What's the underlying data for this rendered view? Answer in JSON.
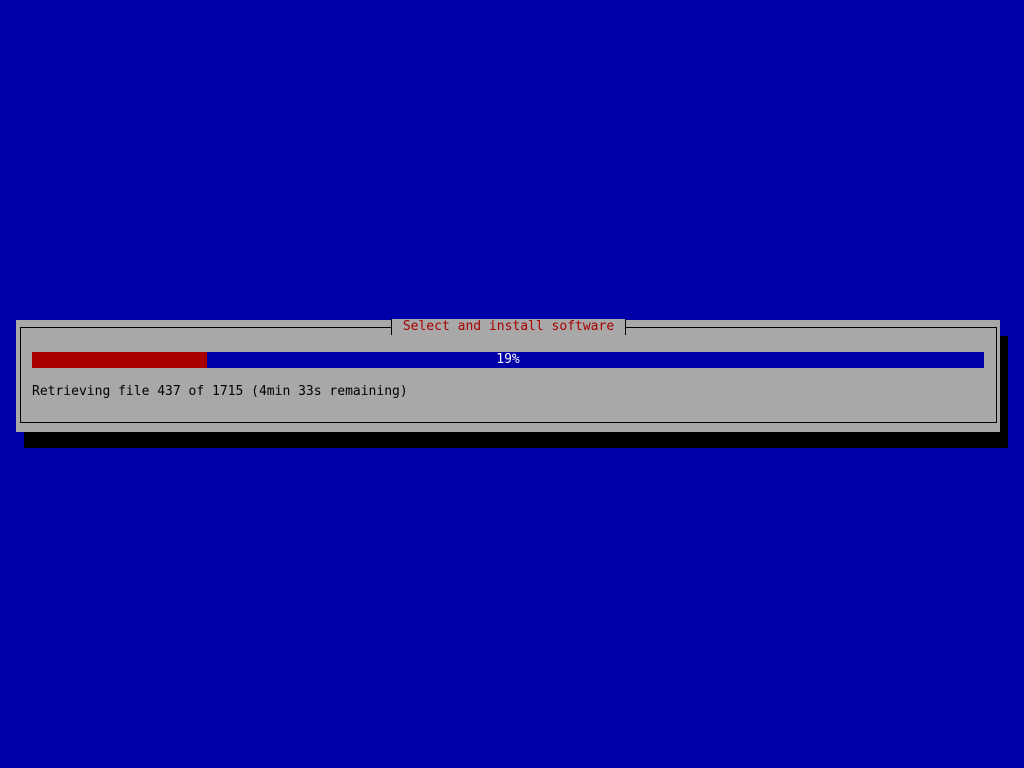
{
  "dialog": {
    "title": "Select and install software",
    "progress_label": "19%",
    "progress_percent": 19,
    "status": "Retrieving file 437 of 1715 (4min 33s remaining)"
  },
  "colors": {
    "background": "#0000a8",
    "dialog": "#a8a8a8",
    "title": "#a80000",
    "progress_fill": "#a80000",
    "progress_track": "#0000a8"
  }
}
